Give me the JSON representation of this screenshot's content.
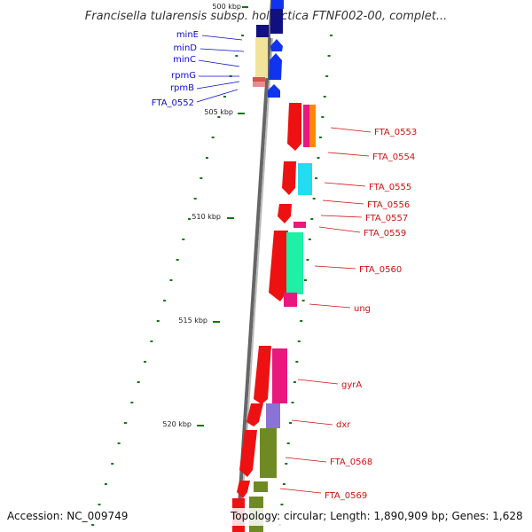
{
  "title": "Francisella tularensis subsp. holarctica FTNF002-00, complet...",
  "footer": {
    "accession": "Accession: NC_009749",
    "topology": "Topology: circular; Length: 1,890,909 bp; Genes: 1,628"
  },
  "kbp_labels": [
    "500 kbp",
    "505 kbp",
    "510 kbp",
    "515 kbp",
    "520 kbp"
  ],
  "genes_left": [
    "minE",
    "minD",
    "minC",
    "rpmG",
    "rpmB",
    "FTA_0552"
  ],
  "genes_right": [
    "FTA_0553",
    "FTA_0554",
    "FTA_0555",
    "FTA_0556",
    "FTA_0557",
    "FTA_0559",
    "FTA_0560",
    "ung",
    "gyrA",
    "dxr",
    "FTA_0568",
    "FTA_0569"
  ],
  "colors": {
    "backbone": "#777777",
    "cds": "#ee1111",
    "blue_genes": "#1133ee",
    "navy": "#101080",
    "tick": "#117711",
    "left_label": "#0b0bd0",
    "right_label": "#d11010"
  }
}
